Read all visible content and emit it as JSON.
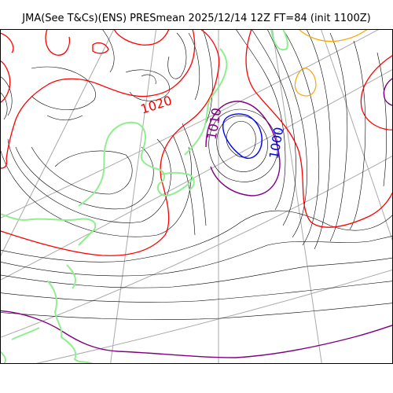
{
  "header": {
    "title": "JMA(See T&Cs)(ENS) PRESmean 2025/12/14 12Z FT=84 (init 1100Z)"
  },
  "map": {
    "contour_labels": [
      "1020",
      "1010",
      "1000"
    ],
    "colors": {
      "isobar_thin": "#000000",
      "isobar_1020": "#ff0000",
      "isobar_1010": "#800080",
      "isobar_1000": "#0000ff",
      "isobar_warm": "#ffa500",
      "coastline": "#90ee90",
      "graticule": "#aaaaaa",
      "frame": "#000000"
    }
  }
}
